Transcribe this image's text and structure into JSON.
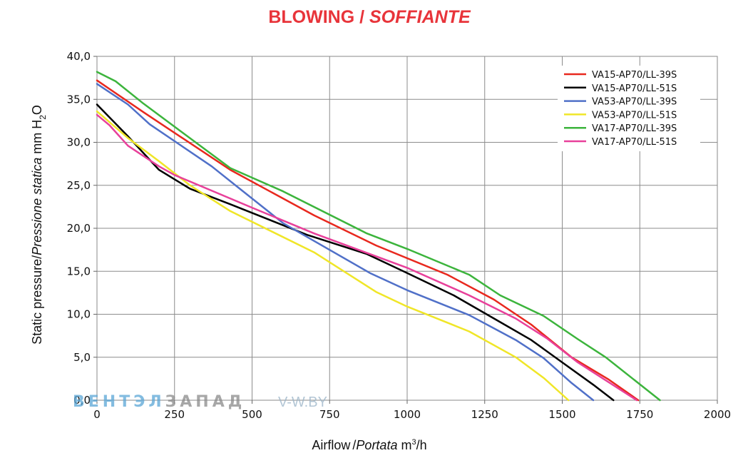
{
  "title": {
    "part1": "BLOWING / ",
    "part2": "SOFFIANTE",
    "color": "#e8343a"
  },
  "watermark": {
    "part1": "ВЕНТЭЛ",
    "part2": "ЗАПАД",
    "part3": "V-W.BY",
    "color1": "#5aa6d6",
    "color2": "#8a8a8a",
    "color3": "#9ab4c8"
  },
  "chart_data": {
    "type": "line",
    "xlabel": "Airflow / Portata m³/h",
    "xlabel_parts": {
      "a": "Airflow",
      "b": "/",
      "c": "Portata",
      "d": " m",
      "e": "3",
      "f": "/h"
    },
    "ylabel": "Static pressure / Pressione statica mm H₂O",
    "ylabel_parts": {
      "a": "Static pressure",
      "b": "/",
      "c": "Pressione statica",
      "d": " mm  H",
      "e": "2",
      "f": "O"
    },
    "xlim": [
      0,
      2000
    ],
    "ylim": [
      0,
      40
    ],
    "x_ticks": [
      "0",
      "250",
      "500",
      "750",
      "1000",
      "1250",
      "1500",
      "1750",
      "2000"
    ],
    "y_ticks": [
      "0,0",
      "5,0",
      "10,0",
      "15,0",
      "20,0",
      "25,0",
      "30,0",
      "35,0",
      "40,0"
    ],
    "grid": true,
    "legend_position": "top-right",
    "series": [
      {
        "name": "VA15-AP70/LL-39S",
        "color": "#e8281e",
        "x": [
          0,
          150,
          430,
          700,
          900,
          1130,
          1280,
          1400,
          1530,
          1650,
          1745
        ],
        "y": [
          37.2,
          33.5,
          26.8,
          21.5,
          18.0,
          14.6,
          11.7,
          8.8,
          5.0,
          2.4,
          0
        ]
      },
      {
        "name": "VA15-AP70/LL-51S",
        "color": "#000000",
        "x": [
          0,
          100,
          200,
          300,
          430,
          680,
          870,
          1000,
          1150,
          1280,
          1400,
          1500,
          1600,
          1665
        ],
        "y": [
          34.4,
          30.7,
          26.8,
          24.6,
          22.8,
          19.2,
          17.0,
          14.8,
          12.2,
          9.5,
          7.0,
          4.4,
          1.8,
          0
        ]
      },
      {
        "name": "VA53-AP70/LL-39S",
        "color": "#5070c8",
        "x": [
          0,
          100,
          170,
          370,
          450,
          600,
          880,
          1000,
          1200,
          1350,
          1440,
          1530,
          1600
        ],
        "y": [
          36.8,
          34.4,
          32.1,
          27.2,
          24.9,
          20.6,
          14.8,
          12.8,
          9.9,
          7.0,
          4.9,
          2.0,
          0
        ]
      },
      {
        "name": "VA53-AP70/LL-51S",
        "color": "#f0e628",
        "x": [
          0,
          100,
          200,
          300,
          430,
          700,
          900,
          1000,
          1200,
          1350,
          1440,
          1520
        ],
        "y": [
          33.6,
          30.5,
          27.8,
          25.0,
          22.0,
          17.2,
          12.6,
          10.9,
          8.0,
          5.0,
          2.6,
          0
        ]
      },
      {
        "name": "VA17-AP70/LL-39S",
        "color": "#3cb43c",
        "x": [
          0,
          60,
          150,
          430,
          600,
          870,
          1000,
          1200,
          1300,
          1440,
          1550,
          1640,
          1815
        ],
        "y": [
          38.2,
          37.1,
          34.5,
          27.0,
          24.3,
          19.4,
          17.6,
          14.6,
          12.2,
          9.8,
          7.1,
          5.0,
          0
        ]
      },
      {
        "name": "VA17-AP70/LL-51S",
        "color": "#e8409a",
        "x": [
          0,
          40,
          100,
          200,
          250,
          500,
          700,
          1000,
          1200,
          1350,
          1450,
          1550,
          1740
        ],
        "y": [
          33.2,
          32.0,
          29.6,
          27.2,
          26.2,
          22.4,
          19.4,
          15.4,
          12.2,
          9.5,
          7.2,
          4.4,
          0
        ]
      }
    ]
  }
}
